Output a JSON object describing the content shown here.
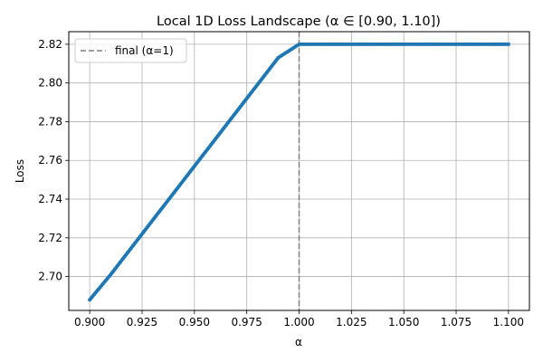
{
  "chart_data": {
    "type": "line",
    "title": "Local 1D Loss Landscape (α ∈ [0.90, 1.10])",
    "xlabel": "α",
    "ylabel": "Loss",
    "xlim": [
      0.89,
      1.11
    ],
    "ylim": [
      2.6825,
      2.8265
    ],
    "xticks": [
      0.9,
      0.925,
      0.95,
      0.975,
      1.0,
      1.025,
      1.05,
      1.075,
      1.1
    ],
    "xtick_labels": [
      "0.900",
      "0.925",
      "0.950",
      "0.975",
      "1.000",
      "1.025",
      "1.050",
      "1.075",
      "1.100"
    ],
    "yticks": [
      2.7,
      2.72,
      2.74,
      2.76,
      2.78,
      2.8,
      2.82
    ],
    "ytick_labels": [
      "2.70",
      "2.72",
      "2.74",
      "2.76",
      "2.78",
      "2.80",
      "2.82"
    ],
    "grid": true,
    "legend": {
      "position": "top-left",
      "entries": [
        "final (α=1)"
      ]
    },
    "series": [
      {
        "color": "#1f77b4",
        "style": "line-with-markers",
        "x": [
          0.9,
          0.91,
          0.92,
          0.93,
          0.94,
          0.95,
          0.96,
          0.97,
          0.98,
          0.99,
          1.0,
          1.1
        ],
        "y": [
          2.688,
          2.701,
          2.715,
          2.729,
          2.743,
          2.757,
          2.771,
          2.785,
          2.799,
          2.813,
          2.82,
          2.82
        ]
      }
    ],
    "vline": {
      "x": 1.0,
      "color": "#808080",
      "style": "dashed",
      "label": "final (α=1)"
    }
  }
}
